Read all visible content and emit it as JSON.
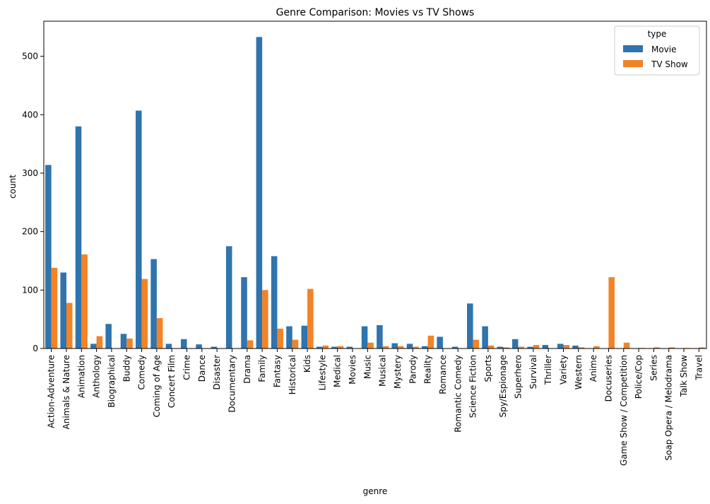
{
  "chart_data": {
    "type": "bar",
    "title": "Genre Comparison: Movies vs TV Shows",
    "xlabel": "genre",
    "ylabel": "count",
    "ylim": [
      0,
      560
    ],
    "yticks": [
      0,
      100,
      200,
      300,
      400,
      500
    ],
    "grid": false,
    "legend": {
      "title": "type",
      "position": "top-right"
    },
    "categories": [
      "Action-Adventure",
      "Animals & Nature",
      "Animation",
      "Anthology",
      "Biographical",
      "Buddy",
      "Comedy",
      "Coming of Age",
      "Concert Film",
      "Crime",
      "Dance",
      "Disaster",
      "Documentary",
      "Drama",
      "Family",
      "Fantasy",
      "Historical",
      "Kids",
      "Lifestyle",
      "Medical",
      "Movies",
      "Music",
      "Musical",
      "Mystery",
      "Parody",
      "Reality",
      "Romance",
      "Romantic Comedy",
      "Science Fiction",
      "Sports",
      "Spy/Espionage",
      "Superhero",
      "Survival",
      "Thriller",
      "Variety",
      "Western",
      "Anime",
      "Docuseries",
      "Game Show / Competition",
      "Police/Cop",
      "Series",
      "Soap Opera / Melodrama",
      "Talk Show",
      "Travel"
    ],
    "series": [
      {
        "name": "Movie",
        "color": "#2f74ad",
        "values": [
          314,
          130,
          380,
          8,
          42,
          25,
          407,
          153,
          8,
          16,
          7,
          3,
          175,
          122,
          533,
          158,
          38,
          39,
          3,
          3,
          3,
          38,
          40,
          9,
          8,
          4,
          20,
          3,
          77,
          38,
          3,
          16,
          3,
          6,
          8,
          5,
          0,
          0,
          0,
          0,
          0,
          0,
          0,
          0
        ]
      },
      {
        "name": "TV Show",
        "color": "#f28327",
        "values": [
          138,
          78,
          161,
          21,
          0,
          17,
          119,
          52,
          0,
          0,
          0,
          0,
          0,
          14,
          100,
          34,
          15,
          102,
          5,
          4,
          0,
          10,
          4,
          4,
          3,
          22,
          0,
          0,
          15,
          5,
          2,
          3,
          6,
          0,
          6,
          2,
          4,
          122,
          10,
          1,
          2,
          2,
          1,
          2
        ]
      }
    ]
  }
}
